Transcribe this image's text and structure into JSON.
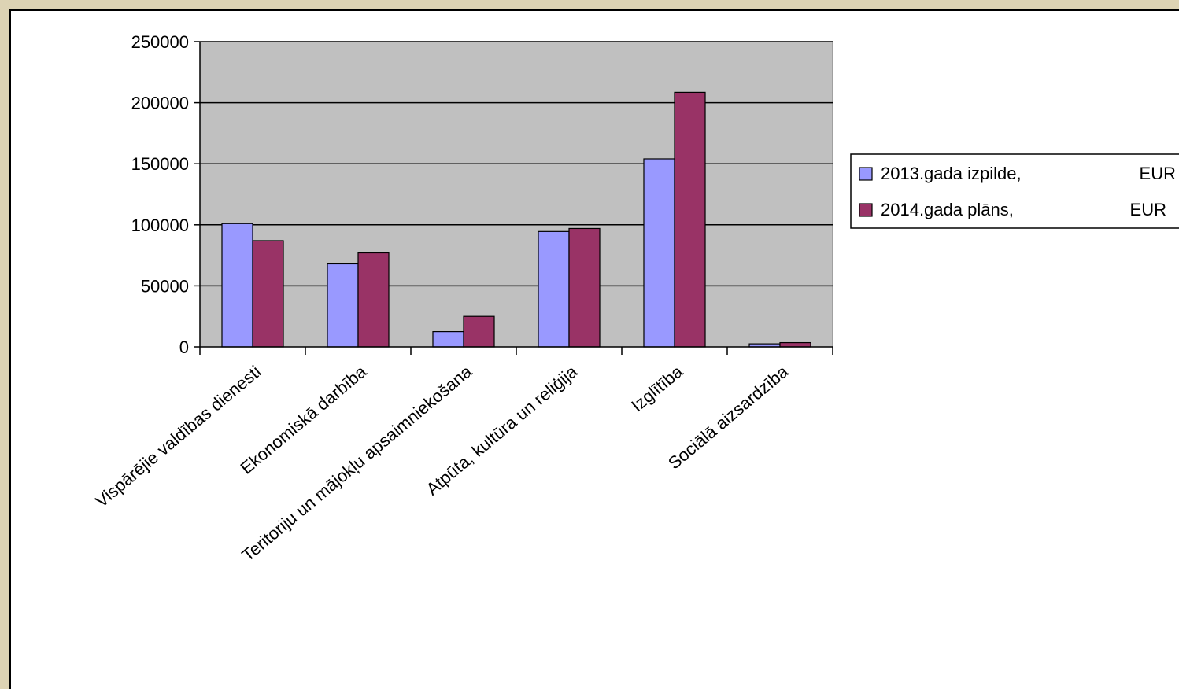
{
  "chart_data": {
    "type": "bar",
    "categories": [
      "Vispārējie valdības dienesti",
      "Ekonomiskā darbība",
      "Teritoriju un mājokļu apsaimniekošana",
      "Atpūta, kultūra un reliģija",
      "Izglītība",
      "Sociālā aizsardzība"
    ],
    "series": [
      {
        "name": "2013.gada izpilde,",
        "unit": "EUR",
        "color": "#9999ff",
        "values": [
          101000,
          68000,
          12500,
          94500,
          154000,
          2500
        ]
      },
      {
        "name": "2014.gada plāns,",
        "unit": "EUR",
        "color": "#993366",
        "values": [
          87000,
          77000,
          25000,
          97000,
          208500,
          3500
        ]
      }
    ],
    "ylim": [
      0,
      250000
    ],
    "yticks": [
      0,
      50000,
      100000,
      150000,
      200000,
      250000
    ],
    "grid": true,
    "plot_background": "#c0c0c0",
    "legend_position": "right"
  }
}
